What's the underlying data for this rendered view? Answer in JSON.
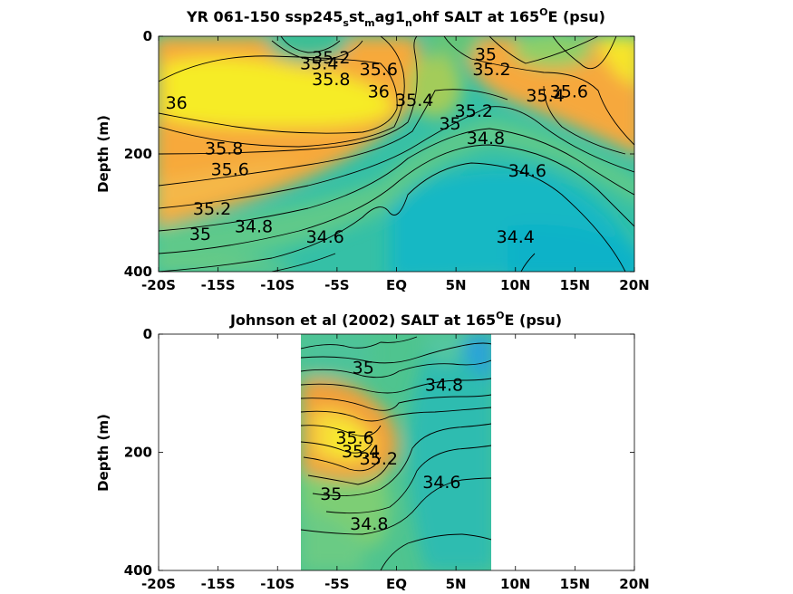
{
  "chart_data": [
    {
      "type": "heatmap",
      "title_parts": [
        "YR 061-150 ssp245",
        "s",
        "st",
        "m",
        "ag1",
        "n",
        "ohf SALT at 165",
        "O",
        "E (psu)"
      ],
      "ylabel": "Depth (m)",
      "xlim": [
        -20,
        20
      ],
      "ylim": [
        0,
        400
      ],
      "y_reversed": true,
      "x_ticks": [
        -20,
        -15,
        -10,
        -5,
        0,
        5,
        10,
        15,
        20
      ],
      "x_tick_labels": [
        "-20S",
        "-15S",
        "-10S",
        "-5S",
        "EQ",
        "5N",
        "10N",
        "15N",
        "20N"
      ],
      "y_ticks": [
        0,
        200,
        400
      ],
      "y_tick_labels": [
        "0",
        "200",
        "400"
      ],
      "data_extent_x": [
        -20,
        20
      ],
      "contour_labels": [
        {
          "text": "35.2",
          "x": -5.5,
          "y": 35
        },
        {
          "text": "35.4",
          "x": -6.5,
          "y": 45
        },
        {
          "text": "35.6",
          "x": -1.5,
          "y": 55
        },
        {
          "text": "35.8",
          "x": -5.5,
          "y": 72
        },
        {
          "text": "36",
          "x": -1.5,
          "y": 93
        },
        {
          "text": "36",
          "x": -18.5,
          "y": 112
        },
        {
          "text": "35.4",
          "x": 1.5,
          "y": 108
        },
        {
          "text": "35",
          "x": 7.5,
          "y": 30
        },
        {
          "text": "35.2",
          "x": 8.0,
          "y": 55
        },
        {
          "text": "35.4",
          "x": 12.5,
          "y": 100
        },
        {
          "text": "35.6",
          "x": 14.5,
          "y": 93
        },
        {
          "text": "35.2",
          "x": 6.5,
          "y": 126
        },
        {
          "text": "35",
          "x": 4.5,
          "y": 148
        },
        {
          "text": "34.8",
          "x": 7.5,
          "y": 172
        },
        {
          "text": "34.6",
          "x": 11.0,
          "y": 228
        },
        {
          "text": "35.8",
          "x": -14.5,
          "y": 190
        },
        {
          "text": "35.6",
          "x": -14.0,
          "y": 225
        },
        {
          "text": "35.2",
          "x": -15.5,
          "y": 292
        },
        {
          "text": "35",
          "x": -16.5,
          "y": 335
        },
        {
          "text": "34.8",
          "x": -12.0,
          "y": 322
        },
        {
          "text": "34.6",
          "x": -6.0,
          "y": 340
        },
        {
          "text": "34.4",
          "x": 10.0,
          "y": 340
        }
      ]
    },
    {
      "type": "heatmap",
      "title_parts": [
        "Johnson et al (2002) SALT at 165",
        "O",
        "E (psu)"
      ],
      "ylabel": "Depth (m)",
      "xlim": [
        -20,
        20
      ],
      "ylim": [
        0,
        400
      ],
      "y_reversed": true,
      "x_ticks": [
        -20,
        -15,
        -10,
        -5,
        0,
        5,
        10,
        15,
        20
      ],
      "x_tick_labels": [
        "-20S",
        "-15S",
        "-10S",
        "-5S",
        "EQ",
        "5N",
        "10N",
        "15N",
        "20N"
      ],
      "y_ticks": [
        0,
        200,
        400
      ],
      "y_tick_labels": [
        "0",
        "200",
        "400"
      ],
      "data_extent_x": [
        -8,
        8
      ],
      "contour_labels": [
        {
          "text": "35",
          "x": -2.8,
          "y": 56
        },
        {
          "text": "34.8",
          "x": 4.0,
          "y": 85
        },
        {
          "text": "35.6",
          "x": -3.5,
          "y": 175
        },
        {
          "text": "35.4",
          "x": -3.0,
          "y": 198
        },
        {
          "text": "35.2",
          "x": -1.5,
          "y": 210
        },
        {
          "text": "35",
          "x": -5.5,
          "y": 270
        },
        {
          "text": "34.6",
          "x": 3.8,
          "y": 250
        },
        {
          "text": "34.8",
          "x": -2.3,
          "y": 320
        }
      ]
    }
  ]
}
